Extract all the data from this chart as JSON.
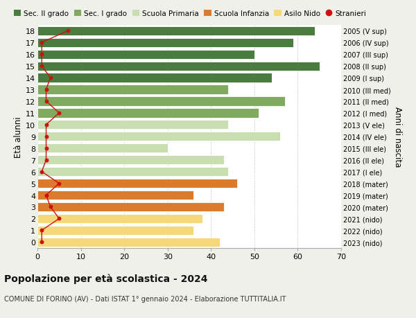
{
  "ages": [
    18,
    17,
    16,
    15,
    14,
    13,
    12,
    11,
    10,
    9,
    8,
    7,
    6,
    5,
    4,
    3,
    2,
    1,
    0
  ],
  "values": [
    64,
    59,
    50,
    65,
    54,
    44,
    57,
    51,
    44,
    56,
    30,
    43,
    44,
    46,
    36,
    43,
    38,
    36,
    42
  ],
  "stranieri": [
    7,
    1,
    1,
    1,
    3,
    2,
    2,
    5,
    2,
    2,
    2,
    2,
    1,
    5,
    2,
    3,
    5,
    1,
    1
  ],
  "right_labels": [
    "2005 (V sup)",
    "2006 (IV sup)",
    "2007 (III sup)",
    "2008 (II sup)",
    "2009 (I sup)",
    "2010 (III med)",
    "2011 (II med)",
    "2012 (I med)",
    "2013 (V ele)",
    "2014 (IV ele)",
    "2015 (III ele)",
    "2016 (II ele)",
    "2017 (I ele)",
    "2018 (mater)",
    "2019 (mater)",
    "2020 (mater)",
    "2021 (nido)",
    "2022 (nido)",
    "2023 (nido)"
  ],
  "bar_colors": [
    "#4a7c3f",
    "#4a7c3f",
    "#4a7c3f",
    "#4a7c3f",
    "#4a7c3f",
    "#7faa5f",
    "#7faa5f",
    "#7faa5f",
    "#c8deb0",
    "#c8deb0",
    "#c8deb0",
    "#c8deb0",
    "#c8deb0",
    "#d97c30",
    "#d97c30",
    "#d97c30",
    "#f5d87a",
    "#f5d87a",
    "#f5d87a"
  ],
  "legend_labels": [
    "Sec. II grado",
    "Sec. I grado",
    "Scuola Primaria",
    "Scuola Infanzia",
    "Asilo Nido",
    "Stranieri"
  ],
  "legend_colors": [
    "#4a7c3f",
    "#7faa5f",
    "#c8deb0",
    "#d97c30",
    "#f5d87a",
    "#cc1111"
  ],
  "stranieri_color": "#cc1111",
  "title": "Popolazione per età scolastica - 2024",
  "subtitle": "COMUNE DI FORINO (AV) - Dati ISTAT 1° gennaio 2024 - Elaborazione TUTTITALIA.IT",
  "ylabel": "Età alunni",
  "right_ylabel": "Anni di nascita",
  "xlim": [
    0,
    70
  ],
  "xticks": [
    0,
    10,
    20,
    30,
    40,
    50,
    60,
    70
  ],
  "background_color": "#f0f0eb",
  "bar_background": "#ffffff",
  "grid_color": "#cccccc"
}
